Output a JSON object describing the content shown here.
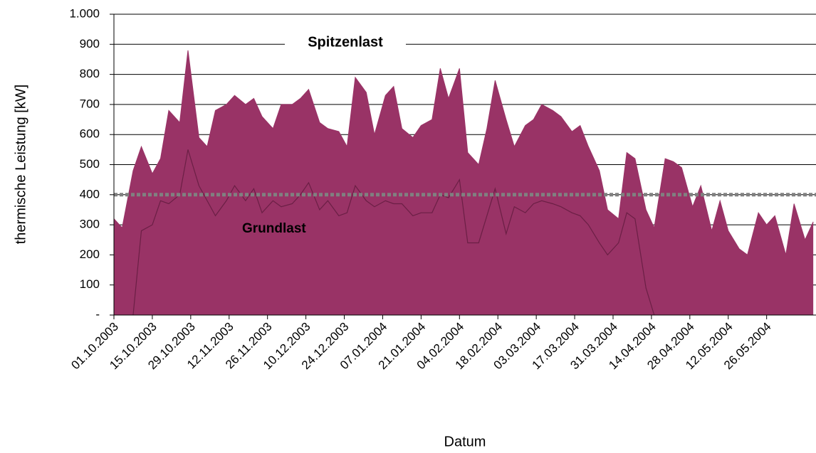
{
  "chart_data": {
    "type": "area",
    "x_label": "Datum",
    "y_label": "thermische Leistung [kW]",
    "x": [
      "01.10.2003",
      "04.10.2003",
      "08.10.2003",
      "11.10.2003",
      "15.10.2003",
      "18.10.2003",
      "21.10.2003",
      "25.10.2003",
      "28.10.2003",
      "01.11.2003",
      "04.11.2003",
      "07.11.2003",
      "11.11.2003",
      "14.11.2003",
      "18.11.2003",
      "21.11.2003",
      "24.11.2003",
      "28.11.2003",
      "01.12.2003",
      "05.12.2003",
      "08.12.2003",
      "11.12.2003",
      "15.12.2003",
      "18.12.2003",
      "22.12.2003",
      "25.12.2003",
      "28.12.2003",
      "01.01.2004",
      "04.01.2004",
      "08.01.2004",
      "11.01.2004",
      "14.01.2004",
      "18.01.2004",
      "21.01.2004",
      "25.01.2004",
      "28.01.2004",
      "31.01.2004",
      "04.02.2004",
      "07.02.2004",
      "11.02.2004",
      "14.02.2004",
      "17.02.2004",
      "21.02.2004",
      "24.02.2004",
      "28.02.2004",
      "02.03.2004",
      "05.03.2004",
      "09.03.2004",
      "12.03.2004",
      "16.03.2004",
      "19.03.2004",
      "22.03.2004",
      "26.03.2004",
      "29.03.2004",
      "02.04.2004",
      "05.04.2004",
      "08.04.2004",
      "12.04.2004",
      "15.04.2004",
      "19.04.2004",
      "22.04.2004",
      "25.04.2004",
      "29.04.2004",
      "02.05.2004",
      "06.05.2004",
      "09.05.2004",
      "12.05.2004",
      "16.05.2004",
      "19.05.2004",
      "23.05.2004",
      "26.05.2004",
      "29.05.2004",
      "02.06.2004",
      "05.06.2004",
      "09.06.2004",
      "12.06.2004"
    ],
    "series": [
      {
        "name": "Spitzenlast",
        "color": "#993366",
        "values": [
          320,
          290,
          480,
          560,
          470,
          520,
          680,
          640,
          880,
          590,
          560,
          680,
          700,
          730,
          700,
          720,
          660,
          620,
          700,
          700,
          720,
          750,
          640,
          620,
          610,
          560,
          790,
          740,
          600,
          730,
          760,
          620,
          590,
          630,
          650,
          820,
          720,
          820,
          540,
          500,
          620,
          780,
          650,
          560,
          630,
          650,
          700,
          680,
          660,
          610,
          630,
          560,
          480,
          350,
          320,
          540,
          520,
          350,
          290,
          520,
          510,
          490,
          360,
          430,
          280,
          380,
          280,
          220,
          200,
          340,
          300,
          330,
          200,
          370,
          250,
          310
        ]
      },
      {
        "color": "#6b1f45",
        "values": [
          null,
          null,
          0,
          280,
          300,
          380,
          370,
          400,
          550,
          430,
          380,
          330,
          380,
          430,
          380,
          420,
          340,
          380,
          360,
          370,
          400,
          440,
          350,
          380,
          330,
          340,
          430,
          380,
          360,
          380,
          370,
          370,
          330,
          340,
          340,
          400,
          390,
          450,
          240,
          240,
          330,
          420,
          270,
          360,
          340,
          370,
          380,
          370,
          360,
          340,
          330,
          300,
          240,
          200,
          240,
          340,
          320,
          90,
          0,
          null,
          null,
          null,
          null,
          null,
          null,
          null,
          null,
          null,
          null,
          null,
          null,
          null,
          null,
          null,
          null,
          null
        ]
      }
    ],
    "reference_line": {
      "name": "Grundlast",
      "value": 400,
      "color": "#808080"
    },
    "xlim": [
      "01.10.2003",
      "13.06.2004"
    ],
    "xticks": [
      "01.10.2003",
      "15.10.2003",
      "29.10.2003",
      "12.11.2003",
      "26.11.2003",
      "10.12.2003",
      "24.12.2003",
      "07.01.2004",
      "21.01.2004",
      "04.02.2004",
      "18.02.2004",
      "03.03.2004",
      "17.03.2004",
      "31.03.2004",
      "14.04.2004",
      "28.04.2004",
      "12.05.2004",
      "26.05.2004"
    ],
    "ylim": [
      0,
      1000
    ],
    "yticks": [
      {
        "value": 0,
        "label": "-"
      },
      100,
      200,
      300,
      400,
      500,
      600,
      700,
      800,
      900,
      {
        "value": 1000,
        "label": "1.000"
      }
    ],
    "grid": true
  }
}
